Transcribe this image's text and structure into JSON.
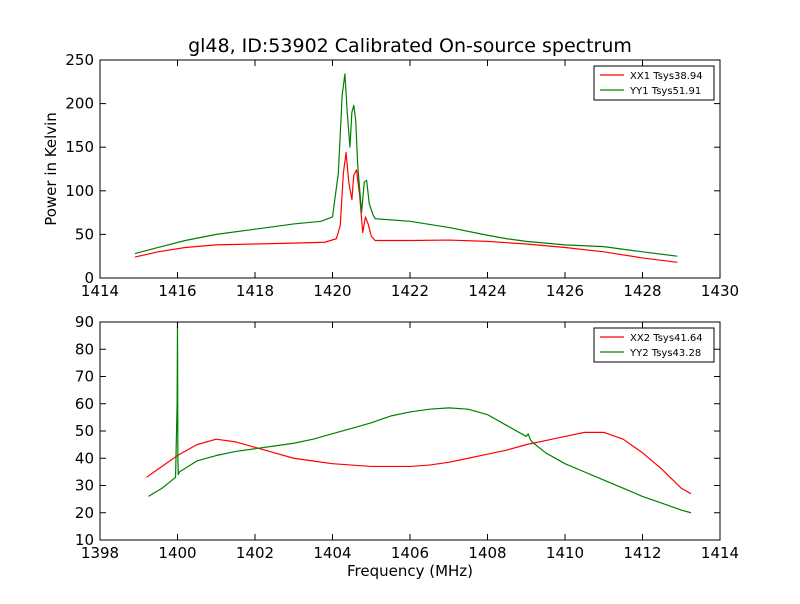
{
  "chart_data": [
    {
      "type": "line",
      "title": "gl48, ID:53902 Calibrated On-source spectrum",
      "xlabel": "",
      "ylabel": "Power in Kelvin",
      "xlim": [
        1414,
        1430
      ],
      "ylim": [
        0,
        250
      ],
      "xticks": [
        1414,
        1416,
        1418,
        1420,
        1422,
        1424,
        1426,
        1428,
        1430
      ],
      "yticks": [
        0,
        50,
        100,
        150,
        200,
        250
      ],
      "legend_position": "top-right",
      "series": [
        {
          "name": "XX1 Tsys38.94",
          "color": "#ff0000",
          "x": [
            1414.9,
            1415.5,
            1416.2,
            1417,
            1418,
            1419,
            1419.8,
            1420.1,
            1420.2,
            1420.28,
            1420.35,
            1420.42,
            1420.5,
            1420.55,
            1420.62,
            1420.7,
            1420.78,
            1420.85,
            1420.92,
            1421.0,
            1421.1,
            1422,
            1423,
            1424,
            1425,
            1426,
            1427,
            1428,
            1428.9
          ],
          "y": [
            24,
            30,
            35,
            38,
            39,
            40,
            41,
            45,
            60,
            120,
            144,
            110,
            90,
            118,
            124,
            95,
            52,
            70,
            62,
            48,
            43,
            43,
            43.5,
            42,
            39,
            35,
            30,
            23,
            18
          ]
        },
        {
          "name": "YY1 Tsys51.91",
          "color": "#008000",
          "x": [
            1414.9,
            1415.5,
            1416.2,
            1417,
            1418,
            1419,
            1419.7,
            1420.0,
            1420.15,
            1420.25,
            1420.32,
            1420.38,
            1420.45,
            1420.5,
            1420.55,
            1420.6,
            1420.65,
            1420.75,
            1420.82,
            1420.88,
            1420.95,
            1421.05,
            1421.1,
            1422,
            1423,
            1424,
            1424.5,
            1425,
            1426,
            1427,
            1428,
            1428.9
          ],
          "y": [
            28,
            35,
            43,
            50,
            56,
            62,
            65,
            70,
            120,
            210,
            234,
            190,
            150,
            190,
            198,
            180,
            130,
            75,
            110,
            112,
            85,
            72,
            68,
            65,
            58,
            49,
            45,
            42,
            38,
            36,
            30,
            25
          ]
        }
      ]
    },
    {
      "type": "line",
      "title": "",
      "xlabel": "Frequency (MHz)",
      "ylabel": "",
      "xlim": [
        1398,
        1414
      ],
      "ylim": [
        10,
        90
      ],
      "xticks": [
        1398,
        1400,
        1402,
        1404,
        1406,
        1408,
        1410,
        1412,
        1414
      ],
      "yticks": [
        10,
        20,
        30,
        40,
        50,
        60,
        70,
        80,
        90
      ],
      "legend_position": "top-right",
      "series": [
        {
          "name": "XX2 Tsys41.64",
          "color": "#ff0000",
          "x": [
            1399.2,
            1399.5,
            1400,
            1400.5,
            1401,
            1401.5,
            1402,
            1402.5,
            1403,
            1403.5,
            1404,
            1404.5,
            1405,
            1405.5,
            1406,
            1406.5,
            1407,
            1407.5,
            1408,
            1408.5,
            1409,
            1409.5,
            1410,
            1410.5,
            1411,
            1411.5,
            1412,
            1412.5,
            1413,
            1413.25
          ],
          "y": [
            33,
            36,
            41,
            45,
            47,
            46,
            44,
            42,
            40,
            39,
            38,
            37.5,
            37,
            37,
            37,
            37.5,
            38.5,
            40,
            41.5,
            43,
            45,
            46.5,
            48,
            49.5,
            49.5,
            47,
            42,
            36,
            29,
            27
          ]
        },
        {
          "name": "YY2 Tsys43.28",
          "color": "#008000",
          "x": [
            1399.25,
            1399.6,
            1399.95,
            1399.99,
            1400.0,
            1400.01,
            1400.02,
            1400.05,
            1400.5,
            1401,
            1401.5,
            1402,
            1402.5,
            1403,
            1403.5,
            1404,
            1404.5,
            1405,
            1405.5,
            1406,
            1406.5,
            1407,
            1407.5,
            1408,
            1408.5,
            1409,
            1409.05,
            1409.1,
            1409.15,
            1409.5,
            1410,
            1410.5,
            1411,
            1411.5,
            1412,
            1412.5,
            1413,
            1413.25
          ],
          "y": [
            26,
            29,
            33,
            60,
            90,
            40,
            34,
            35,
            39,
            41,
            42.5,
            43.5,
            44.5,
            45.5,
            47,
            49,
            51,
            53,
            55.5,
            57,
            58,
            58.5,
            58,
            56,
            52,
            48,
            49,
            47,
            46,
            42,
            38,
            35,
            32,
            29,
            26,
            23.5,
            21,
            20
          ]
        }
      ]
    }
  ]
}
